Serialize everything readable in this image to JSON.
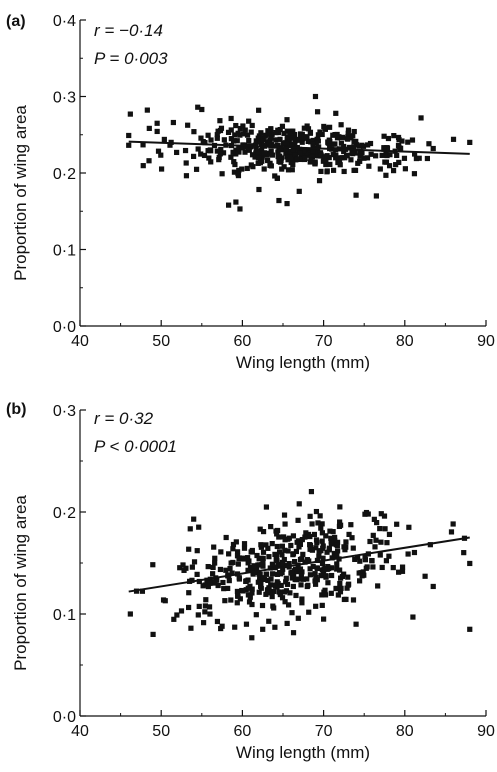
{
  "chart_data": [
    {
      "type": "scatter",
      "panel_label": "(a)",
      "xlabel": "Wing length (mm)",
      "ylabel": "Proportion of wing area",
      "xlim": [
        40,
        90
      ],
      "ylim": [
        0.0,
        0.4
      ],
      "xticks": [
        40,
        50,
        60,
        70,
        80,
        90
      ],
      "yticks": [
        "0·0",
        "0·1",
        "0·2",
        "0·3",
        "0·4"
      ],
      "grid": false,
      "annotations": [
        "r = −0·14",
        "P = 0·003"
      ],
      "fit_line": {
        "x": [
          46,
          88
        ],
        "y": [
          0.241,
          0.225
        ]
      },
      "cloud": {
        "n": 430,
        "x_mean": 66,
        "x_sd": 6.8,
        "y_base": 0.232,
        "y_slope": -0.0004,
        "y_sd": 0.016
      },
      "points": [
        [
          46.2,
          0.277
        ],
        [
          49.5,
          0.265
        ],
        [
          51.5,
          0.266
        ],
        [
          48.5,
          0.216
        ],
        [
          54.5,
          0.286
        ],
        [
          55.0,
          0.283
        ],
        [
          58.3,
          0.158
        ],
        [
          59.2,
          0.162
        ],
        [
          59.7,
          0.153
        ],
        [
          64.5,
          0.164
        ],
        [
          65.5,
          0.16
        ],
        [
          69.0,
          0.3
        ],
        [
          57.5,
          0.199
        ],
        [
          62.0,
          0.282
        ],
        [
          74.0,
          0.171
        ],
        [
          76.5,
          0.17
        ],
        [
          82.0,
          0.272
        ],
        [
          83.5,
          0.232
        ],
        [
          86.0,
          0.244
        ],
        [
          88.0,
          0.24
        ],
        [
          79.0,
          0.223
        ],
        [
          71.5,
          0.278
        ],
        [
          69.5,
          0.19
        ],
        [
          67.0,
          0.176
        ]
      ]
    },
    {
      "type": "scatter",
      "panel_label": "(b)",
      "xlabel": "Wing length (mm)",
      "ylabel": "Proportion of wing area",
      "xlim": [
        40,
        90
      ],
      "ylim": [
        0.0,
        0.3
      ],
      "xticks": [
        40,
        50,
        60,
        70,
        80,
        90
      ],
      "yticks": [
        "0·0",
        "0·1",
        "0·2",
        "0·3"
      ],
      "grid": false,
      "annotations": [
        "r = 0·32",
        "P < 0·0001"
      ],
      "fit_line": {
        "x": [
          46,
          88
        ],
        "y": [
          0.122,
          0.175
        ]
      },
      "cloud": {
        "n": 430,
        "x_mean": 66,
        "x_sd": 6.8,
        "y_base": 0.145,
        "y_slope": 0.0013,
        "y_sd": 0.021
      },
      "points": [
        [
          46.2,
          0.1
        ],
        [
          49.0,
          0.08
        ],
        [
          50.5,
          0.113
        ],
        [
          52.5,
          0.103
        ],
        [
          53.5,
          0.132
        ],
        [
          54.0,
          0.193
        ],
        [
          57.5,
          0.088
        ],
        [
          58.0,
          0.175
        ],
        [
          68.5,
          0.22
        ],
        [
          72.0,
          0.205
        ],
        [
          75.5,
          0.198
        ],
        [
          77.5,
          0.196
        ],
        [
          79.0,
          0.188
        ],
        [
          80.5,
          0.185
        ],
        [
          81.0,
          0.097
        ],
        [
          82.5,
          0.137
        ],
        [
          83.5,
          0.127
        ],
        [
          88.0,
          0.085
        ],
        [
          62.5,
          0.085
        ],
        [
          64.0,
          0.087
        ],
        [
          67.0,
          0.208
        ],
        [
          74.0,
          0.09
        ],
        [
          70.0,
          0.095
        ],
        [
          60.5,
          0.09
        ]
      ]
    }
  ]
}
